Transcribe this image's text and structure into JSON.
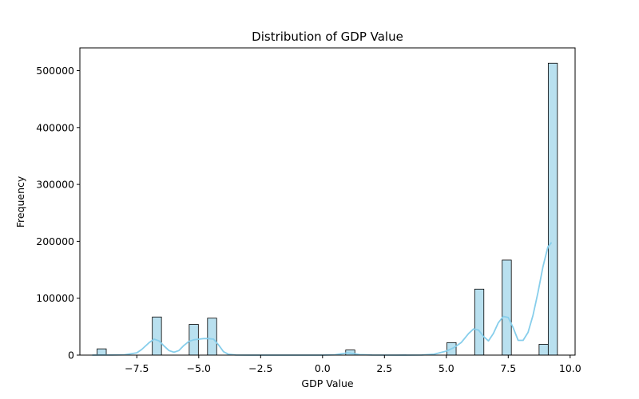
{
  "chart_data": {
    "type": "bar",
    "title": "Distribution of GDP Value",
    "xlabel": "GDP Value",
    "ylabel": "Frequency",
    "xlim": [
      -9.8,
      10.2
    ],
    "ylim": [
      0,
      540000
    ],
    "xticks": [
      -7.5,
      -5.0,
      -2.5,
      0.0,
      2.5,
      5.0,
      7.5,
      10.0
    ],
    "xtick_labels": [
      "−7.5",
      "−5.0",
      "−2.5",
      "0.0",
      "2.5",
      "5.0",
      "7.5",
      "10.0"
    ],
    "yticks": [
      0,
      100000,
      200000,
      300000,
      400000,
      500000
    ],
    "ytick_labels": [
      "0",
      "100000",
      "200000",
      "300000",
      "400000",
      "500000"
    ],
    "bin_width": 0.37,
    "bins": [
      {
        "x": -8.92,
        "value": 11000
      },
      {
        "x": -6.69,
        "value": 67000
      },
      {
        "x": -5.2,
        "value": 54000
      },
      {
        "x": -4.46,
        "value": 65000
      },
      {
        "x": 1.12,
        "value": 9000
      },
      {
        "x": 5.21,
        "value": 22000
      },
      {
        "x": 6.33,
        "value": 116000
      },
      {
        "x": 7.44,
        "value": 167000
      },
      {
        "x": 8.93,
        "value": 19000
      },
      {
        "x": 9.3,
        "value": 513000
      }
    ],
    "kde": {
      "x": [
        -9.3,
        -9.0,
        -8.5,
        -8.0,
        -7.5,
        -7.3,
        -7.0,
        -6.8,
        -6.6,
        -6.4,
        -6.2,
        -6.0,
        -5.8,
        -5.6,
        -5.4,
        -5.2,
        -5.0,
        -4.8,
        -4.6,
        -4.4,
        -4.2,
        -4.0,
        -3.8,
        -3.5,
        -3.0,
        -2.0,
        0.0,
        0.5,
        0.8,
        1.0,
        1.2,
        1.5,
        2.0,
        3.0,
        4.0,
        4.5,
        5.0,
        5.3,
        5.6,
        5.9,
        6.1,
        6.3,
        6.5,
        6.7,
        6.9,
        7.1,
        7.3,
        7.5,
        7.7,
        7.9,
        8.1,
        8.3,
        8.5,
        8.7,
        8.9,
        9.1,
        9.25
      ],
      "y": [
        0,
        100,
        200,
        600,
        4000,
        10000,
        22000,
        28000,
        25000,
        16000,
        8000,
        5000,
        8000,
        17000,
        24000,
        27000,
        28000,
        29000,
        29000,
        28000,
        18000,
        6000,
        1500,
        200,
        0,
        0,
        0,
        500,
        2500,
        4000,
        3000,
        900,
        100,
        0,
        200,
        1500,
        7000,
        13000,
        22000,
        38000,
        46000,
        44000,
        33000,
        25000,
        38000,
        57000,
        68000,
        66000,
        48000,
        26000,
        26000,
        40000,
        70000,
        110000,
        155000,
        190000,
        198000
      ]
    },
    "colors": {
      "bar_fill": "#b9e0ef",
      "bar_edge": "#000000",
      "kde_line": "#87ceeb"
    },
    "grid": false,
    "legend": "none"
  }
}
